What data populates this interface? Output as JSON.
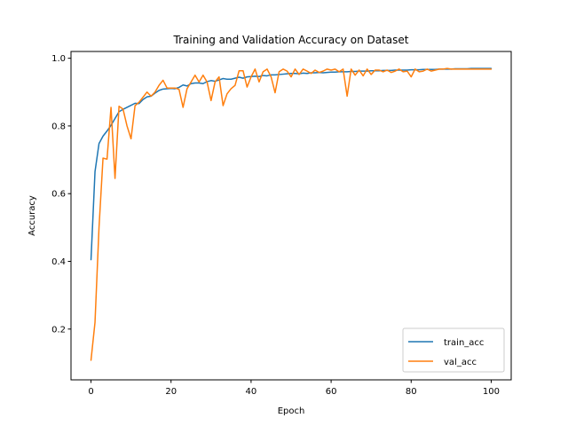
{
  "chart_data": {
    "type": "line",
    "title": "Training and Validation Accuracy on Dataset",
    "xlabel": "Epoch",
    "ylabel": "Accuracy",
    "xlim": [
      -5,
      105
    ],
    "ylim": [
      0.05,
      1.02
    ],
    "xticks": [
      0,
      20,
      40,
      60,
      80,
      100
    ],
    "yticks": [
      0.2,
      0.4,
      0.6,
      0.8,
      1.0
    ],
    "xtick_labels": [
      "0",
      "20",
      "40",
      "60",
      "80",
      "100"
    ],
    "ytick_labels": [
      "0.2",
      "0.4",
      "0.6",
      "0.8",
      "1.0"
    ],
    "grid": false,
    "legend_position": "lower-right",
    "x": [
      0,
      1,
      2,
      3,
      4,
      5,
      6,
      7,
      8,
      9,
      10,
      11,
      12,
      13,
      14,
      15,
      16,
      17,
      18,
      19,
      20,
      21,
      22,
      23,
      24,
      25,
      26,
      27,
      28,
      29,
      30,
      31,
      32,
      33,
      34,
      35,
      36,
      37,
      38,
      39,
      40,
      41,
      42,
      43,
      44,
      45,
      46,
      47,
      48,
      49,
      50,
      51,
      52,
      53,
      54,
      55,
      56,
      57,
      58,
      59,
      60,
      61,
      62,
      63,
      64,
      65,
      66,
      67,
      68,
      69,
      70,
      71,
      72,
      73,
      74,
      75,
      76,
      77,
      78,
      79,
      80,
      81,
      82,
      83,
      84,
      85,
      86,
      87,
      88,
      89,
      90,
      91,
      92,
      93,
      94,
      95,
      96,
      97,
      98,
      99,
      100
    ],
    "series": [
      {
        "name": "train_acc",
        "color": "#1f77b4",
        "values": [
          0.405,
          0.665,
          0.748,
          0.77,
          0.785,
          0.802,
          0.822,
          0.842,
          0.849,
          0.855,
          0.861,
          0.867,
          0.866,
          0.878,
          0.886,
          0.888,
          0.897,
          0.905,
          0.909,
          0.91,
          0.911,
          0.91,
          0.914,
          0.921,
          0.918,
          0.925,
          0.927,
          0.927,
          0.925,
          0.931,
          0.934,
          0.932,
          0.936,
          0.94,
          0.938,
          0.938,
          0.941,
          0.944,
          0.941,
          0.945,
          0.946,
          0.947,
          0.946,
          0.949,
          0.948,
          0.951,
          0.951,
          0.952,
          0.953,
          0.954,
          0.955,
          0.955,
          0.954,
          0.956,
          0.955,
          0.957,
          0.957,
          0.958,
          0.957,
          0.958,
          0.959,
          0.959,
          0.96,
          0.96,
          0.96,
          0.961,
          0.961,
          0.962,
          0.962,
          0.962,
          0.963,
          0.963,
          0.963,
          0.964,
          0.964,
          0.964,
          0.965,
          0.965,
          0.965,
          0.965,
          0.966,
          0.966,
          0.966,
          0.967,
          0.967,
          0.967,
          0.967,
          0.968,
          0.968,
          0.968,
          0.968,
          0.969,
          0.969,
          0.969,
          0.969,
          0.97,
          0.97,
          0.97,
          0.97,
          0.97,
          0.97
        ]
      },
      {
        "name": "val_acc",
        "color": "#ff7f0e",
        "values": [
          0.108,
          0.22,
          0.5,
          0.705,
          0.702,
          0.855,
          0.645,
          0.858,
          0.85,
          0.8,
          0.762,
          0.86,
          0.87,
          0.885,
          0.9,
          0.888,
          0.9,
          0.92,
          0.935,
          0.912,
          0.912,
          0.912,
          0.908,
          0.855,
          0.91,
          0.93,
          0.95,
          0.93,
          0.95,
          0.93,
          0.875,
          0.93,
          0.945,
          0.86,
          0.895,
          0.91,
          0.92,
          0.963,
          0.963,
          0.915,
          0.945,
          0.968,
          0.93,
          0.96,
          0.968,
          0.945,
          0.898,
          0.96,
          0.968,
          0.962,
          0.945,
          0.968,
          0.952,
          0.968,
          0.962,
          0.955,
          0.965,
          0.958,
          0.962,
          0.968,
          0.965,
          0.968,
          0.96,
          0.968,
          0.888,
          0.968,
          0.95,
          0.965,
          0.948,
          0.968,
          0.952,
          0.965,
          0.965,
          0.96,
          0.965,
          0.958,
          0.962,
          0.968,
          0.96,
          0.962,
          0.945,
          0.968,
          0.96,
          0.962,
          0.968,
          0.962,
          0.965,
          0.968,
          0.968,
          0.97,
          0.968,
          0.968,
          0.968,
          0.968,
          0.968,
          0.968,
          0.968,
          0.968,
          0.968,
          0.968,
          0.968
        ]
      }
    ]
  }
}
